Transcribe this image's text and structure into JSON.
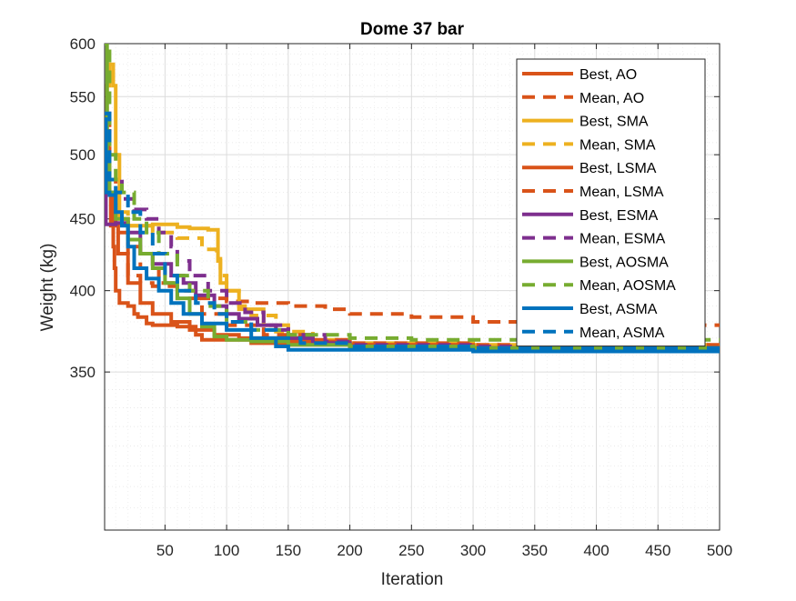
{
  "chart_data": {
    "type": "line",
    "title": "Dome 37 bar",
    "xlabel": "Iteration",
    "ylabel": "Weight (kg)",
    "xlim": [
      1,
      500
    ],
    "ylim": [
      270,
      600
    ],
    "y_scale": "log",
    "grid": true,
    "minor_grid": true,
    "legend_position": "top-right",
    "x_ticks": [
      50,
      100,
      150,
      200,
      250,
      300,
      350,
      400,
      450,
      500
    ],
    "y_ticks": [
      350,
      400,
      450,
      500,
      550,
      600
    ],
    "x_tick_labels": [
      "50",
      "100",
      "150",
      "200",
      "250",
      "300",
      "350",
      "400",
      "450",
      "500"
    ],
    "y_tick_labels": [
      "350",
      "400",
      "450",
      "500",
      "550",
      "600"
    ],
    "series": [
      {
        "name": "Best, AO",
        "color": "#D95319",
        "style": "solid",
        "points": [
          [
            1,
            520
          ],
          [
            3,
            470
          ],
          [
            6,
            445
          ],
          [
            8,
            430
          ],
          [
            9,
            415
          ],
          [
            10,
            400
          ],
          [
            13,
            392
          ],
          [
            20,
            390
          ],
          [
            25,
            385
          ],
          [
            28,
            383
          ],
          [
            35,
            379
          ],
          [
            40,
            378
          ],
          [
            60,
            377
          ],
          [
            75,
            372
          ],
          [
            80,
            369
          ],
          [
            120,
            367
          ],
          [
            150,
            366
          ],
          [
            200,
            365
          ],
          [
            300,
            365
          ],
          [
            400,
            365
          ],
          [
            500,
            365
          ]
        ]
      },
      {
        "name": "Mean, AO",
        "color": "#D95319",
        "style": "dashed",
        "points": [
          [
            1,
            530
          ],
          [
            5,
            480
          ],
          [
            10,
            440
          ],
          [
            20,
            410
          ],
          [
            30,
            405
          ],
          [
            40,
            403
          ],
          [
            60,
            400
          ],
          [
            80,
            395
          ],
          [
            100,
            393
          ],
          [
            120,
            392
          ],
          [
            150,
            390
          ],
          [
            180,
            388
          ],
          [
            200,
            385
          ],
          [
            250,
            383
          ],
          [
            300,
            380
          ],
          [
            350,
            379
          ],
          [
            400,
            378
          ],
          [
            450,
            378
          ],
          [
            500,
            377
          ]
        ]
      },
      {
        "name": "Best, SMA",
        "color": "#EDB120",
        "style": "solid",
        "points": [
          [
            1,
            500
          ],
          [
            3,
            560
          ],
          [
            5,
            580
          ],
          [
            8,
            560
          ],
          [
            10,
            500
          ],
          [
            13,
            450
          ],
          [
            20,
            445
          ],
          [
            40,
            446
          ],
          [
            60,
            444
          ],
          [
            70,
            443
          ],
          [
            85,
            442
          ],
          [
            92,
            442
          ],
          [
            93,
            420
          ],
          [
            95,
            405
          ],
          [
            100,
            400
          ],
          [
            110,
            388
          ],
          [
            130,
            378
          ],
          [
            150,
            370
          ],
          [
            170,
            367
          ],
          [
            200,
            366
          ],
          [
            300,
            365
          ],
          [
            400,
            365
          ],
          [
            500,
            365
          ]
        ]
      },
      {
        "name": "Mean, SMA",
        "color": "#EDB120",
        "style": "dashed",
        "points": [
          [
            1,
            510
          ],
          [
            5,
            470
          ],
          [
            10,
            455
          ],
          [
            20,
            445
          ],
          [
            40,
            440
          ],
          [
            60,
            436
          ],
          [
            80,
            428
          ],
          [
            92,
            425
          ],
          [
            95,
            410
          ],
          [
            100,
            400
          ],
          [
            110,
            390
          ],
          [
            120,
            384
          ],
          [
            140,
            374
          ],
          [
            170,
            369
          ],
          [
            200,
            367
          ],
          [
            300,
            366
          ],
          [
            400,
            366
          ],
          [
            500,
            366
          ]
        ]
      },
      {
        "name": "Best, LSMA",
        "color": "#D95319",
        "style": "solid",
        "points": [
          [
            1,
            510
          ],
          [
            4,
            470
          ],
          [
            8,
            445
          ],
          [
            12,
            425
          ],
          [
            20,
            405
          ],
          [
            30,
            392
          ],
          [
            40,
            385
          ],
          [
            55,
            380
          ],
          [
            70,
            375
          ],
          [
            90,
            372
          ],
          [
            110,
            370
          ],
          [
            150,
            368
          ],
          [
            200,
            366
          ],
          [
            300,
            364
          ],
          [
            400,
            363
          ],
          [
            500,
            363
          ]
        ]
      },
      {
        "name": "Mean, LSMA",
        "color": "#D95319",
        "style": "dashed",
        "points": [
          [
            1,
            520
          ],
          [
            5,
            470
          ],
          [
            10,
            450
          ],
          [
            20,
            430
          ],
          [
            30,
            415
          ],
          [
            45,
            405
          ],
          [
            60,
            395
          ],
          [
            80,
            385
          ],
          [
            100,
            378
          ],
          [
            130,
            372
          ],
          [
            170,
            369
          ],
          [
            200,
            367
          ],
          [
            300,
            366
          ],
          [
            400,
            366
          ],
          [
            500,
            366
          ]
        ]
      },
      {
        "name": "Best, ESMA",
        "color": "#7E2F8E",
        "style": "solid",
        "points": [
          [
            1,
            530
          ],
          [
            2,
            446
          ],
          [
            5,
            446
          ],
          [
            10,
            447
          ],
          [
            20,
            440
          ],
          [
            30,
            425
          ],
          [
            40,
            418
          ],
          [
            55,
            410
          ],
          [
            65,
            405
          ],
          [
            75,
            397
          ],
          [
            90,
            390
          ],
          [
            100,
            385
          ],
          [
            110,
            382
          ],
          [
            125,
            378
          ],
          [
            140,
            375
          ],
          [
            150,
            370
          ],
          [
            170,
            367
          ],
          [
            200,
            365
          ],
          [
            300,
            364
          ],
          [
            400,
            363
          ],
          [
            500,
            363
          ]
        ]
      },
      {
        "name": "Mean, ESMA",
        "color": "#7E2F8E",
        "style": "dashed",
        "points": [
          [
            1,
            535
          ],
          [
            5,
            480
          ],
          [
            15,
            465
          ],
          [
            25,
            457
          ],
          [
            35,
            450
          ],
          [
            45,
            440
          ],
          [
            55,
            430
          ],
          [
            60,
            420
          ],
          [
            70,
            410
          ],
          [
            85,
            400
          ],
          [
            100,
            392
          ],
          [
            115,
            386
          ],
          [
            130,
            378
          ],
          [
            150,
            372
          ],
          [
            180,
            368
          ],
          [
            200,
            366
          ],
          [
            300,
            365
          ],
          [
            400,
            364
          ],
          [
            500,
            364
          ]
        ]
      },
      {
        "name": "Best, AOSMA",
        "color": "#77AC30",
        "style": "solid",
        "points": [
          [
            1,
            600
          ],
          [
            3,
            500
          ],
          [
            5,
            470
          ],
          [
            10,
            450
          ],
          [
            20,
            435
          ],
          [
            30,
            425
          ],
          [
            40,
            415
          ],
          [
            50,
            405
          ],
          [
            60,
            395
          ],
          [
            70,
            385
          ],
          [
            80,
            377
          ],
          [
            90,
            371
          ],
          [
            100,
            369
          ],
          [
            120,
            368
          ],
          [
            150,
            366
          ],
          [
            200,
            365
          ],
          [
            300,
            364
          ],
          [
            400,
            364
          ],
          [
            500,
            364
          ]
        ]
      },
      {
        "name": "Mean, AOSMA",
        "color": "#77AC30",
        "style": "dashed",
        "points": [
          [
            1,
            610
          ],
          [
            5,
            500
          ],
          [
            10,
            480
          ],
          [
            15,
            470
          ],
          [
            25,
            450
          ],
          [
            35,
            440
          ],
          [
            45,
            425
          ],
          [
            60,
            410
          ],
          [
            70,
            400
          ],
          [
            85,
            390
          ],
          [
            100,
            380
          ],
          [
            120,
            375
          ],
          [
            150,
            372
          ],
          [
            200,
            370
          ],
          [
            250,
            369
          ],
          [
            300,
            369
          ],
          [
            400,
            369
          ],
          [
            500,
            369
          ]
        ]
      },
      {
        "name": "Best, ASMA",
        "color": "#0072BD",
        "style": "solid",
        "points": [
          [
            1,
            530
          ],
          [
            2,
            470
          ],
          [
            5,
            468
          ],
          [
            10,
            455
          ],
          [
            15,
            445
          ],
          [
            20,
            430
          ],
          [
            25,
            415
          ],
          [
            35,
            408
          ],
          [
            45,
            400
          ],
          [
            55,
            392
          ],
          [
            65,
            385
          ],
          [
            80,
            379
          ],
          [
            100,
            375
          ],
          [
            120,
            370
          ],
          [
            140,
            365
          ],
          [
            150,
            363
          ],
          [
            200,
            363
          ],
          [
            300,
            362
          ],
          [
            400,
            362
          ],
          [
            500,
            361
          ]
        ]
      },
      {
        "name": "Mean, ASMA",
        "color": "#0072BD",
        "style": "dashed",
        "points": [
          [
            1,
            535
          ],
          [
            5,
            480
          ],
          [
            10,
            470
          ],
          [
            20,
            455
          ],
          [
            30,
            440
          ],
          [
            40,
            425
          ],
          [
            50,
            410
          ],
          [
            60,
            400
          ],
          [
            75,
            392
          ],
          [
            90,
            385
          ],
          [
            100,
            380
          ],
          [
            120,
            375
          ],
          [
            140,
            370
          ],
          [
            160,
            367
          ],
          [
            200,
            365
          ],
          [
            300,
            364
          ],
          [
            400,
            364
          ],
          [
            500,
            364
          ]
        ]
      }
    ]
  }
}
